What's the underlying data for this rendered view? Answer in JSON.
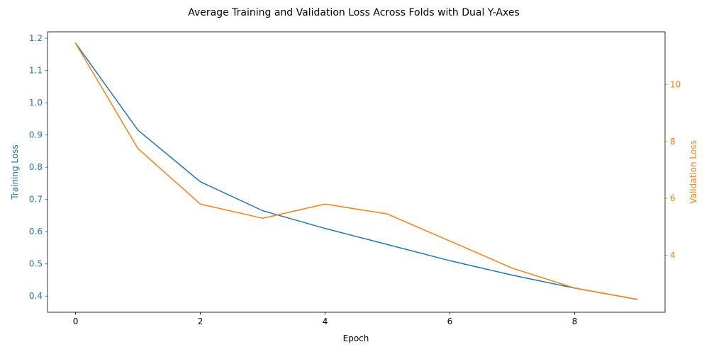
{
  "chart_data": {
    "type": "line",
    "title": "Average Training and Validation Loss Across Folds with Dual Y-Axes",
    "xlabel": "Epoch",
    "ylabel_left": "Training Loss",
    "ylabel_right": "Validation Loss",
    "grid": false,
    "x": [
      0,
      1,
      2,
      3,
      4,
      5,
      6,
      7,
      8,
      9
    ],
    "xlim": [
      -0.45,
      9.45
    ],
    "x_ticks": [
      0,
      2,
      4,
      6,
      8
    ],
    "y_left_lim": [
      0.35,
      1.22
    ],
    "y_left_ticks": [
      0.4,
      0.5,
      0.6,
      0.7,
      0.8,
      0.9,
      1.0,
      1.1,
      1.2
    ],
    "y_right_lim": [
      2.0,
      11.85
    ],
    "y_right_ticks": [
      4,
      6,
      8,
      10
    ],
    "series": [
      {
        "name": "Training Loss",
        "axis": "left",
        "color": "#1f77b4",
        "values": [
          1.185,
          0.915,
          0.755,
          0.665,
          0.61,
          0.56,
          0.51,
          0.465,
          0.425,
          0.39
        ]
      },
      {
        "name": "Validation Loss",
        "axis": "right",
        "color": "#ff7f0e",
        "values": [
          11.45,
          7.75,
          5.8,
          5.3,
          5.8,
          5.45,
          4.5,
          3.55,
          2.85,
          2.45
        ]
      }
    ]
  }
}
